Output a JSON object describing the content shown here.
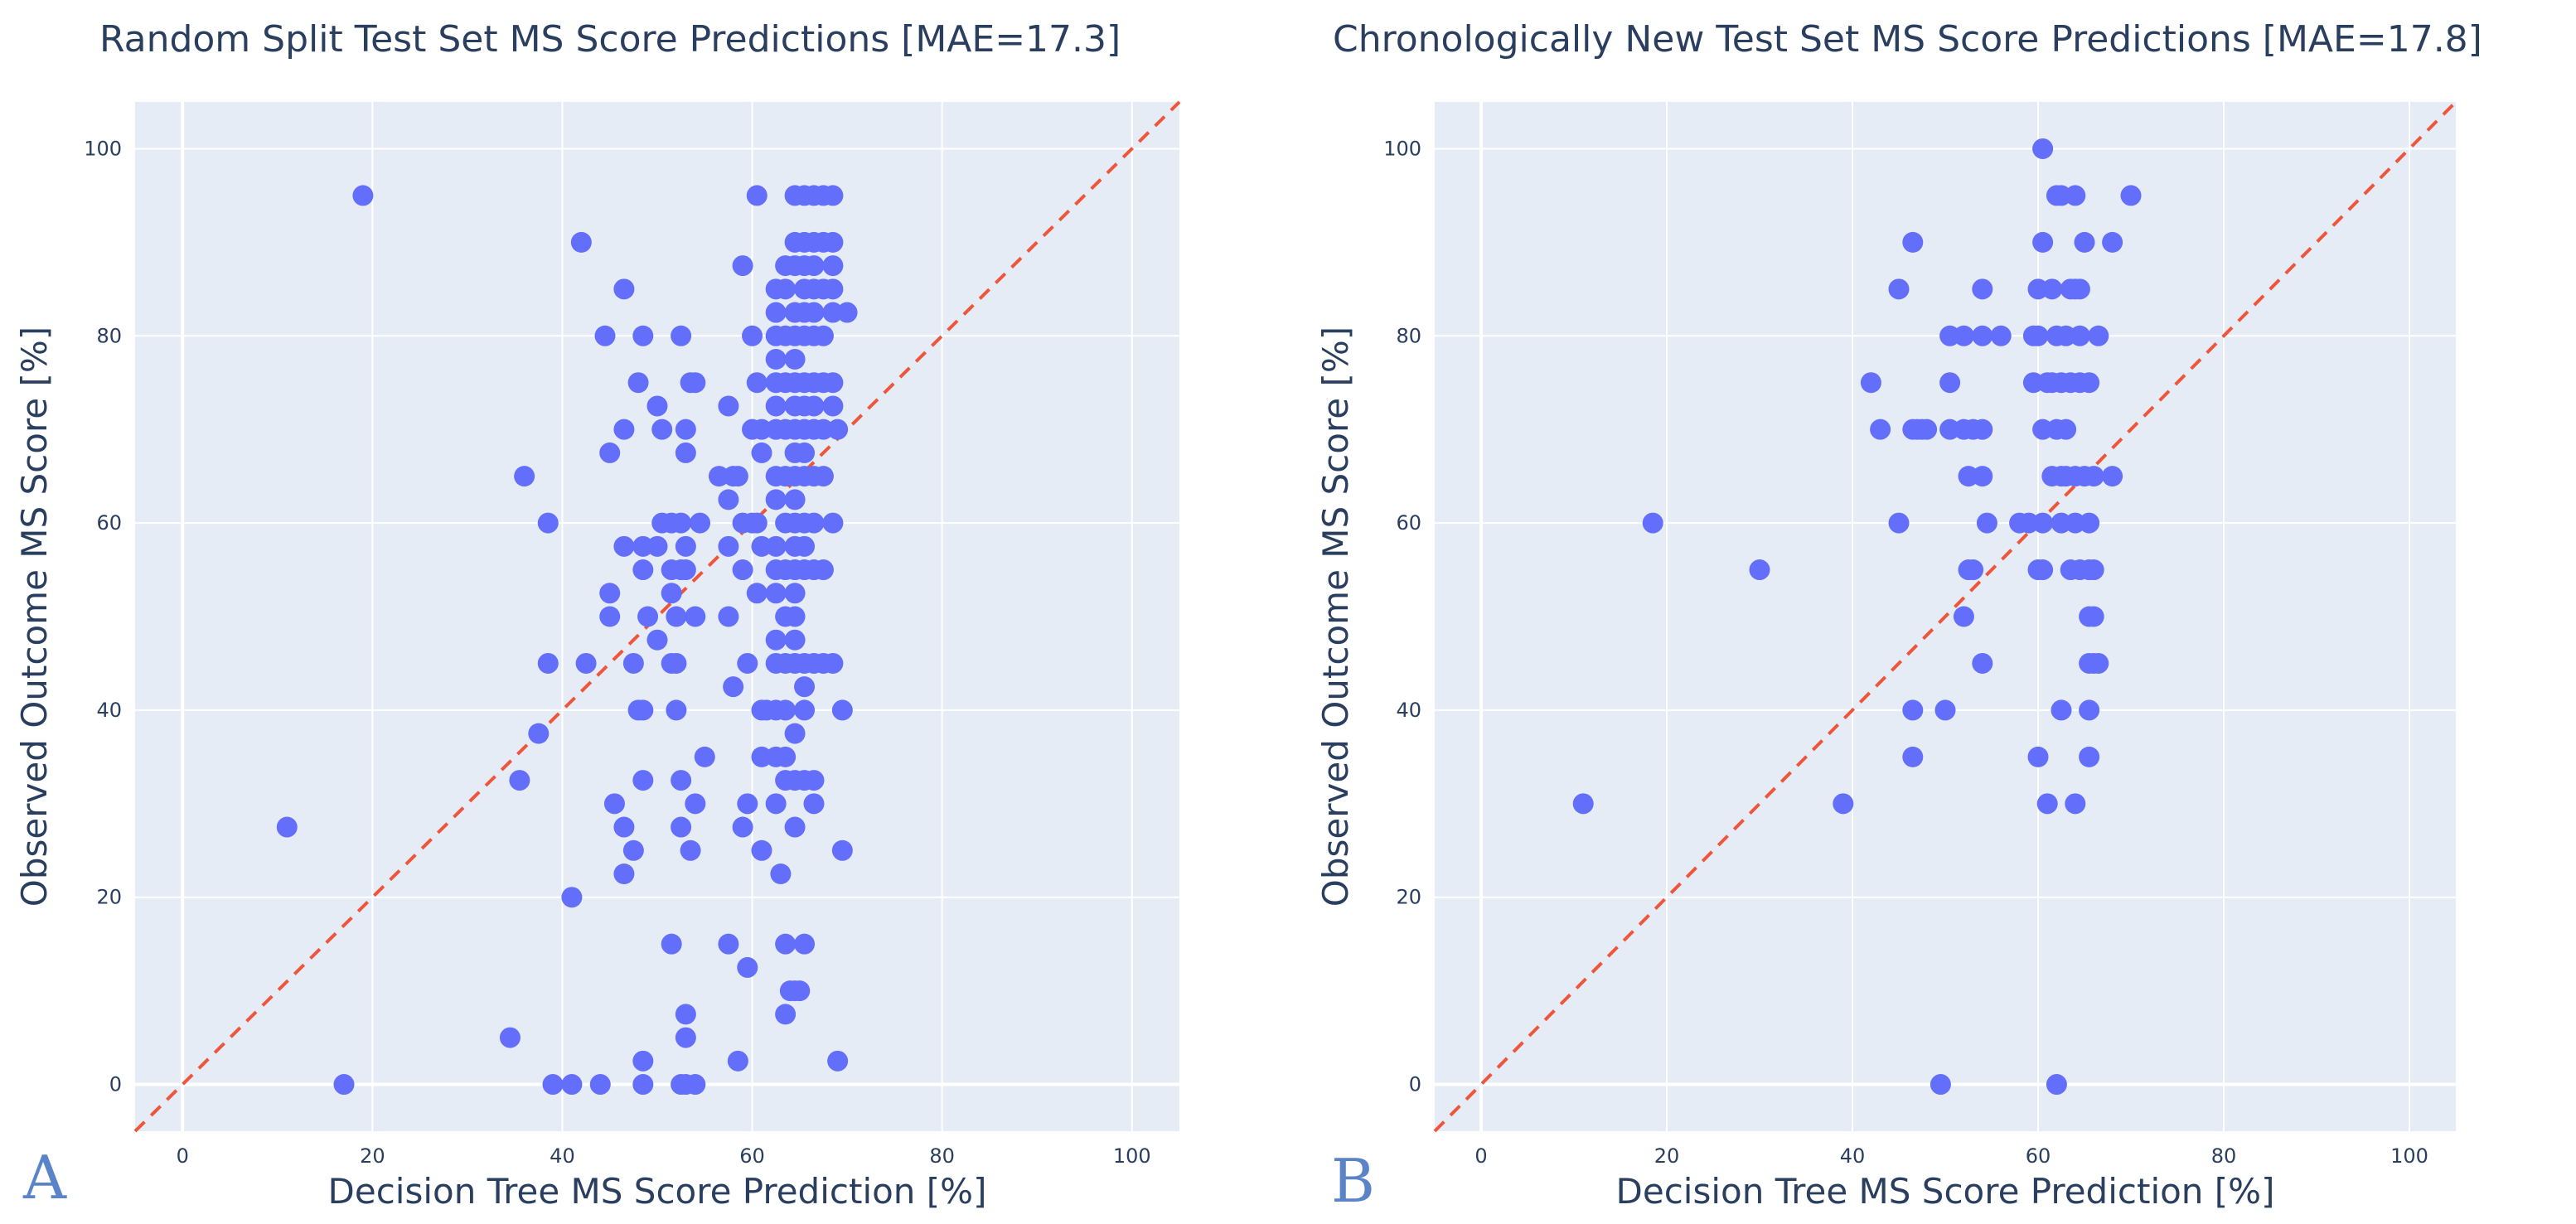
{
  "colors": {
    "plot_bg": "#E5ECF6",
    "marker": "#636EFA",
    "reference_line": "#EF553B",
    "text": "#2A3F5F"
  },
  "chart_data": [
    {
      "type": "scatter",
      "panel_label": "A",
      "title": "Random Split Test Set MS Score Predictions [MAE=17.3]",
      "xlabel": "Decision Tree MS Score Prediction [%]",
      "ylabel": "Observed Outcome MS Score [%]",
      "xlim": [
        -5,
        105
      ],
      "ylim": [
        -5,
        105
      ],
      "xticks": [
        0,
        20,
        40,
        60,
        80,
        100
      ],
      "yticks": [
        0,
        20,
        40,
        60,
        80,
        100
      ],
      "reference_line": "y = x",
      "points": [
        [
          19,
          95
        ],
        [
          11,
          27.5
        ],
        [
          17,
          0
        ],
        [
          42,
          90
        ],
        [
          46.5,
          85
        ],
        [
          44.5,
          80
        ],
        [
          48.5,
          80
        ],
        [
          52.5,
          80
        ],
        [
          36,
          65
        ],
        [
          38.5,
          60
        ],
        [
          37.5,
          37.5
        ],
        [
          35.5,
          32.5
        ],
        [
          34.5,
          5
        ],
        [
          41,
          20
        ],
        [
          39,
          0
        ],
        [
          41,
          0
        ],
        [
          44,
          0
        ],
        [
          38.5,
          45
        ],
        [
          42.5,
          45
        ],
        [
          45,
          67.5
        ],
        [
          46.5,
          70
        ],
        [
          48,
          75
        ],
        [
          50,
          72.5
        ],
        [
          50.5,
          70
        ],
        [
          53,
          70
        ],
        [
          53,
          67.5
        ],
        [
          53.5,
          75
        ],
        [
          54,
          75
        ],
        [
          46.5,
          57.5
        ],
        [
          48.5,
          57.5
        ],
        [
          50,
          57.5
        ],
        [
          50.5,
          60
        ],
        [
          51.5,
          60
        ],
        [
          52.5,
          60
        ],
        [
          53,
          57.5
        ],
        [
          54.5,
          60
        ],
        [
          48.5,
          55
        ],
        [
          51.5,
          55
        ],
        [
          52.5,
          55
        ],
        [
          53,
          55
        ],
        [
          45,
          52.5
        ],
        [
          51.5,
          52.5
        ],
        [
          45,
          50
        ],
        [
          49,
          50
        ],
        [
          52,
          50
        ],
        [
          54,
          50
        ],
        [
          57.5,
          50
        ],
        [
          50,
          47.5
        ],
        [
          51.5,
          45
        ],
        [
          52,
          45
        ],
        [
          47.5,
          45
        ],
        [
          48,
          40
        ],
        [
          48.5,
          40
        ],
        [
          52,
          40
        ],
        [
          58,
          42.5
        ],
        [
          55,
          35
        ],
        [
          48.5,
          32.5
        ],
        [
          52.5,
          32.5
        ],
        [
          45.5,
          30
        ],
        [
          54,
          30
        ],
        [
          46.5,
          27.5
        ],
        [
          52.5,
          27.5
        ],
        [
          47.5,
          25
        ],
        [
          53.5,
          25
        ],
        [
          46.5,
          22.5
        ],
        [
          51.5,
          15
        ],
        [
          57.5,
          15
        ],
        [
          53,
          7.5
        ],
        [
          53,
          5
        ],
        [
          48.5,
          2.5
        ],
        [
          58.5,
          2.5
        ],
        [
          48.5,
          0
        ],
        [
          52.5,
          0
        ],
        [
          53,
          0
        ],
        [
          54,
          0
        ],
        [
          60.5,
          95
        ],
        [
          59,
          87.5
        ],
        [
          60,
          80
        ],
        [
          57.5,
          72.5
        ],
        [
          60,
          70
        ],
        [
          61,
          70
        ],
        [
          60.5,
          75
        ],
        [
          61,
          67.5
        ],
        [
          56.5,
          65
        ],
        [
          58,
          65
        ],
        [
          58.5,
          65
        ],
        [
          57.5,
          62.5
        ],
        [
          59,
          60
        ],
        [
          60,
          60
        ],
        [
          60.5,
          60
        ],
        [
          59,
          55
        ],
        [
          57.5,
          57.5
        ],
        [
          61,
          57.5
        ],
        [
          60.5,
          52.5
        ],
        [
          59.5,
          45
        ],
        [
          61,
          40
        ],
        [
          61.5,
          40
        ],
        [
          61,
          35
        ],
        [
          59.5,
          30
        ],
        [
          59,
          27.5
        ],
        [
          61,
          25
        ],
        [
          59.5,
          12.5
        ],
        [
          63,
          22.5
        ],
        [
          63.5,
          15
        ],
        [
          63.5,
          7.5
        ],
        [
          64,
          10
        ],
        [
          64.5,
          10
        ],
        [
          65,
          10
        ],
        [
          65.5,
          15
        ],
        [
          69,
          2.5
        ],
        [
          69.5,
          25
        ],
        [
          69.5,
          40
        ],
        [
          68.5,
          45
        ],
        [
          68.5,
          60
        ],
        [
          69,
          70
        ],
        [
          70,
          82.5
        ],
        [
          62.5,
          85
        ],
        [
          62.5,
          82.5
        ],
        [
          62.5,
          80
        ],
        [
          62.5,
          77.5
        ],
        [
          62.5,
          75
        ],
        [
          62.5,
          72.5
        ],
        [
          62.5,
          70
        ],
        [
          62.5,
          65
        ],
        [
          62.5,
          62.5
        ],
        [
          62.5,
          57.5
        ],
        [
          62.5,
          55
        ],
        [
          62.5,
          52.5
        ],
        [
          62.5,
          47.5
        ],
        [
          62.5,
          45
        ],
        [
          62.5,
          40
        ],
        [
          62.5,
          35
        ],
        [
          62.5,
          30
        ],
        [
          63.5,
          87.5
        ],
        [
          63.5,
          85
        ],
        [
          63.5,
          80
        ],
        [
          63.5,
          75
        ],
        [
          63.5,
          70
        ],
        [
          63.5,
          65
        ],
        [
          63.5,
          60
        ],
        [
          63.5,
          55
        ],
        [
          63.5,
          50
        ],
        [
          63.5,
          45
        ],
        [
          63.5,
          40
        ],
        [
          63.5,
          35
        ],
        [
          63.5,
          32.5
        ],
        [
          64.5,
          95
        ],
        [
          64.5,
          90
        ],
        [
          64.5,
          87.5
        ],
        [
          64.5,
          82.5
        ],
        [
          64.5,
          80
        ],
        [
          64.5,
          77.5
        ],
        [
          64.5,
          75
        ],
        [
          64.5,
          72.5
        ],
        [
          64.5,
          70
        ],
        [
          64.5,
          67.5
        ],
        [
          64.5,
          65
        ],
        [
          64.5,
          62.5
        ],
        [
          64.5,
          60
        ],
        [
          64.5,
          57.5
        ],
        [
          64.5,
          55
        ],
        [
          64.5,
          52.5
        ],
        [
          64.5,
          50
        ],
        [
          64.5,
          47.5
        ],
        [
          64.5,
          45
        ],
        [
          64.5,
          37.5
        ],
        [
          64.5,
          32.5
        ],
        [
          64.5,
          27.5
        ],
        [
          65.5,
          95
        ],
        [
          65.5,
          90
        ],
        [
          65.5,
          87.5
        ],
        [
          65.5,
          85
        ],
        [
          65.5,
          82.5
        ],
        [
          65.5,
          80
        ],
        [
          65.5,
          75
        ],
        [
          65.5,
          72.5
        ],
        [
          65.5,
          70
        ],
        [
          65.5,
          67.5
        ],
        [
          65.5,
          65
        ],
        [
          65.5,
          60
        ],
        [
          65.5,
          57.5
        ],
        [
          65.5,
          55
        ],
        [
          65.5,
          45
        ],
        [
          65.5,
          42.5
        ],
        [
          65.5,
          40
        ],
        [
          65.5,
          32.5
        ],
        [
          66.5,
          95
        ],
        [
          66.5,
          90
        ],
        [
          66.5,
          87.5
        ],
        [
          66.5,
          85
        ],
        [
          66.5,
          82.5
        ],
        [
          66.5,
          80
        ],
        [
          66.5,
          75
        ],
        [
          66.5,
          72.5
        ],
        [
          66.5,
          70
        ],
        [
          66.5,
          65
        ],
        [
          66.5,
          60
        ],
        [
          66.5,
          55
        ],
        [
          66.5,
          45
        ],
        [
          66.5,
          32.5
        ],
        [
          66.5,
          30
        ],
        [
          67.5,
          95
        ],
        [
          67.5,
          90
        ],
        [
          67.5,
          85
        ],
        [
          67.5,
          80
        ],
        [
          67.5,
          75
        ],
        [
          67.5,
          70
        ],
        [
          67.5,
          65
        ],
        [
          67.5,
          55
        ],
        [
          67.5,
          45
        ],
        [
          68.5,
          95
        ],
        [
          68.5,
          90
        ],
        [
          68.5,
          87.5
        ],
        [
          68.5,
          85
        ],
        [
          68.5,
          82.5
        ],
        [
          68.5,
          75
        ],
        [
          68.5,
          72.5
        ]
      ]
    },
    {
      "type": "scatter",
      "panel_label": "B",
      "title": "Chronologically New Test Set MS Score Predictions [MAE=17.8]",
      "xlabel": "Decision Tree MS Score Prediction [%]",
      "ylabel": "Observed Outcome MS Score [%]",
      "xlim": [
        -5,
        105
      ],
      "ylim": [
        -5,
        105
      ],
      "xticks": [
        0,
        20,
        40,
        60,
        80,
        100
      ],
      "yticks": [
        0,
        20,
        40,
        60,
        80,
        100
      ],
      "reference_line": "y = x",
      "points": [
        [
          11,
          30
        ],
        [
          18.5,
          60
        ],
        [
          30,
          55
        ],
        [
          39,
          30
        ],
        [
          42,
          75
        ],
        [
          43,
          70
        ],
        [
          45,
          85
        ],
        [
          45,
          60
        ],
        [
          46.5,
          90
        ],
        [
          46.5,
          70
        ],
        [
          47,
          70
        ],
        [
          47.5,
          70
        ],
        [
          48,
          70
        ],
        [
          46.5,
          40
        ],
        [
          46.5,
          35
        ],
        [
          49.5,
          0
        ],
        [
          50,
          40
        ],
        [
          50.5,
          80
        ],
        [
          50.5,
          75
        ],
        [
          50.5,
          70
        ],
        [
          52,
          80
        ],
        [
          52,
          70
        ],
        [
          52,
          50
        ],
        [
          52.5,
          65
        ],
        [
          52.5,
          55
        ],
        [
          53,
          55
        ],
        [
          53,
          70
        ],
        [
          54,
          80
        ],
        [
          54,
          85
        ],
        [
          54,
          70
        ],
        [
          54,
          65
        ],
        [
          54,
          45
        ],
        [
          54.5,
          60
        ],
        [
          56,
          80
        ],
        [
          58,
          60
        ],
        [
          59,
          60
        ],
        [
          59.5,
          80
        ],
        [
          59.5,
          75
        ],
        [
          60,
          85
        ],
        [
          60,
          80
        ],
        [
          60,
          55
        ],
        [
          60,
          35
        ],
        [
          60.5,
          100
        ],
        [
          60.5,
          90
        ],
        [
          60.5,
          70
        ],
        [
          60.5,
          60
        ],
        [
          60.5,
          55
        ],
        [
          61,
          75
        ],
        [
          61,
          30
        ],
        [
          61.5,
          85
        ],
        [
          61.5,
          65
        ],
        [
          61.5,
          75
        ],
        [
          62,
          95
        ],
        [
          62,
          80
        ],
        [
          62,
          70
        ],
        [
          62.5,
          95
        ],
        [
          62.5,
          75
        ],
        [
          62.5,
          65
        ],
        [
          62.5,
          60
        ],
        [
          62.5,
          40
        ],
        [
          62,
          0
        ],
        [
          63,
          80
        ],
        [
          63,
          70
        ],
        [
          63,
          65
        ],
        [
          63.5,
          85
        ],
        [
          63.5,
          75
        ],
        [
          63.5,
          55
        ],
        [
          64,
          95
        ],
        [
          64,
          85
        ],
        [
          64,
          65
        ],
        [
          64,
          60
        ],
        [
          64,
          30
        ],
        [
          64.5,
          85
        ],
        [
          64.5,
          80
        ],
        [
          64.5,
          75
        ],
        [
          64.5,
          55
        ],
        [
          65,
          90
        ],
        [
          65,
          65
        ],
        [
          65.5,
          75
        ],
        [
          65.5,
          60
        ],
        [
          65.5,
          55
        ],
        [
          65.5,
          50
        ],
        [
          65.5,
          45
        ],
        [
          65.5,
          40
        ],
        [
          65.5,
          35
        ],
        [
          66,
          65
        ],
        [
          66,
          55
        ],
        [
          66,
          50
        ],
        [
          66,
          45
        ],
        [
          66.5,
          80
        ],
        [
          66.5,
          45
        ],
        [
          68,
          90
        ],
        [
          68,
          65
        ],
        [
          70,
          95
        ]
      ]
    }
  ]
}
